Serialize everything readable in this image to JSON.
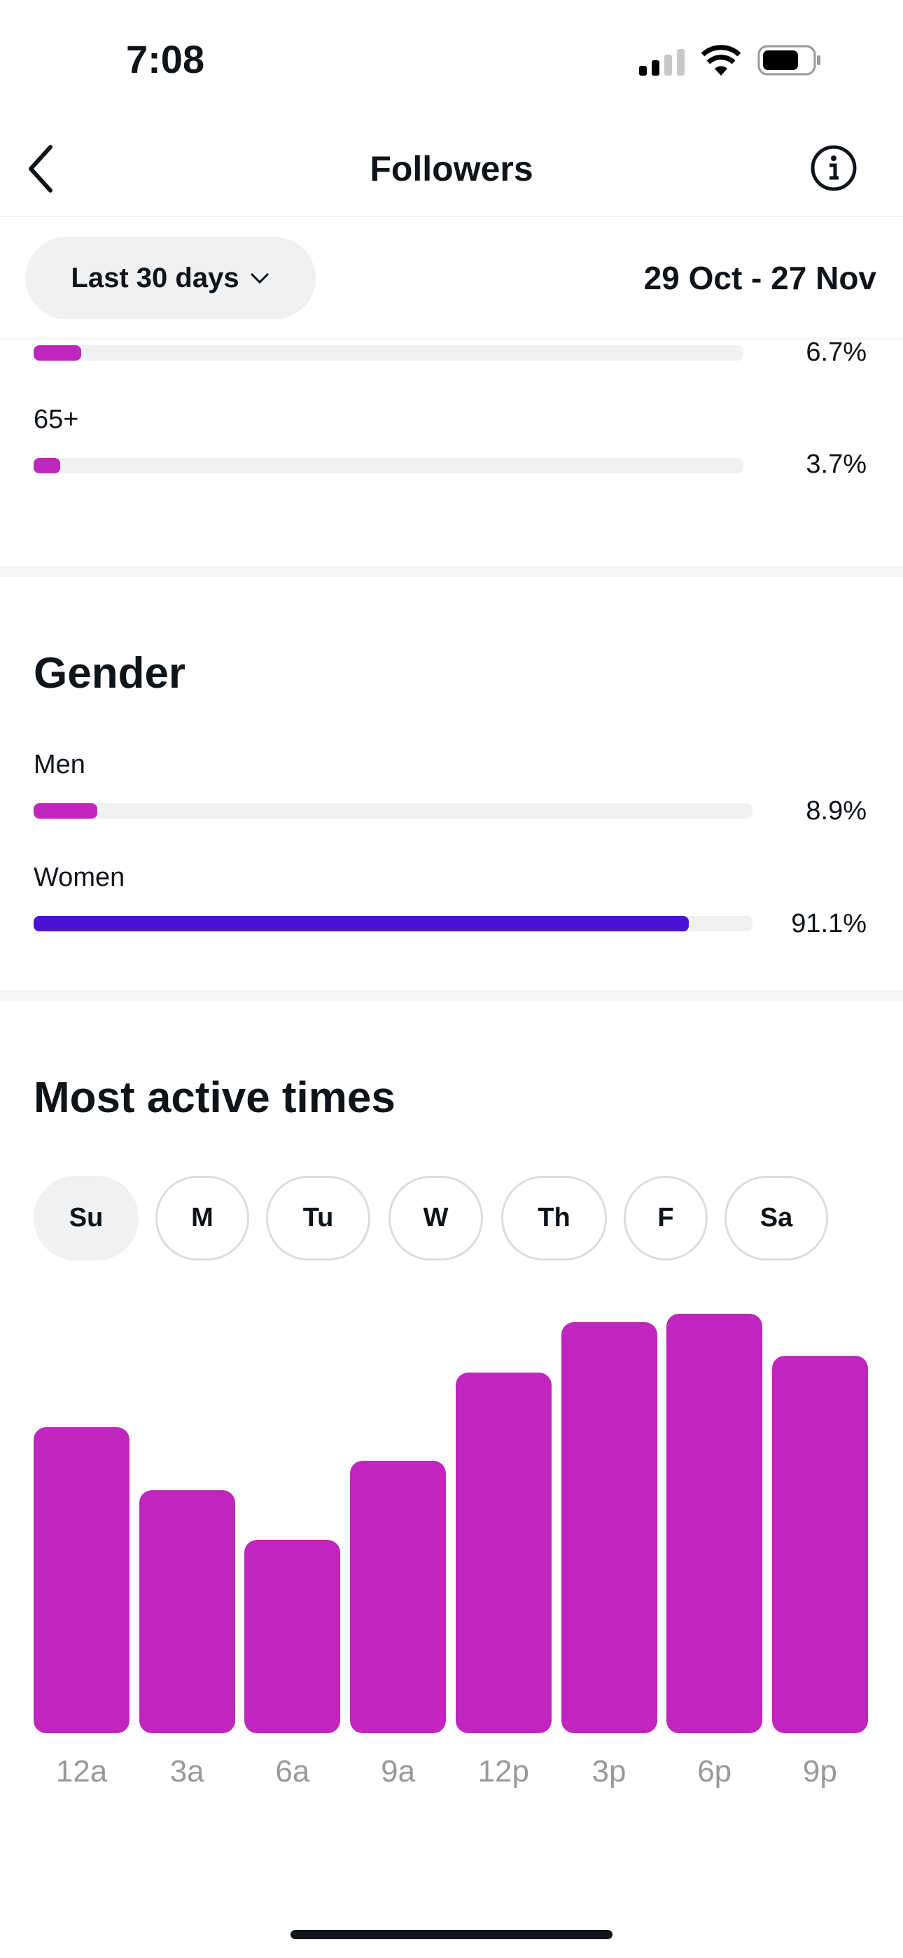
{
  "status_bar": {
    "time": "7:08"
  },
  "nav": {
    "title": "Followers"
  },
  "filter": {
    "range_label": "Last 30 days",
    "date_range": "29 Oct - 27 Nov"
  },
  "age": {
    "items": [
      {
        "label": "",
        "percent_text": "6.7%",
        "value": 6.7
      },
      {
        "label": "65+",
        "percent_text": "3.7%",
        "value": 3.7
      }
    ]
  },
  "gender": {
    "title": "Gender",
    "items": [
      {
        "label": "Men",
        "percent_text": "8.9%",
        "value": 8.9,
        "color": "#c026be"
      },
      {
        "label": "Women",
        "percent_text": "91.1%",
        "value": 91.1,
        "color": "#4c11d6"
      }
    ]
  },
  "active": {
    "title": "Most active times",
    "days": [
      "Su",
      "M",
      "Tu",
      "W",
      "Th",
      "F",
      "Sa"
    ],
    "selected_day": "Su"
  },
  "colors": {
    "accent": "#c026be",
    "women": "#4c11d6"
  },
  "chart_data": {
    "type": "bar",
    "title": "Most active times",
    "categories": [
      "12a",
      "3a",
      "6a",
      "9a",
      "12p",
      "3p",
      "6p",
      "9p"
    ],
    "values": [
      73,
      58,
      46,
      65,
      86,
      98,
      100,
      90
    ],
    "ylim": [
      0,
      100
    ],
    "xlabel": "",
    "ylabel": ""
  }
}
